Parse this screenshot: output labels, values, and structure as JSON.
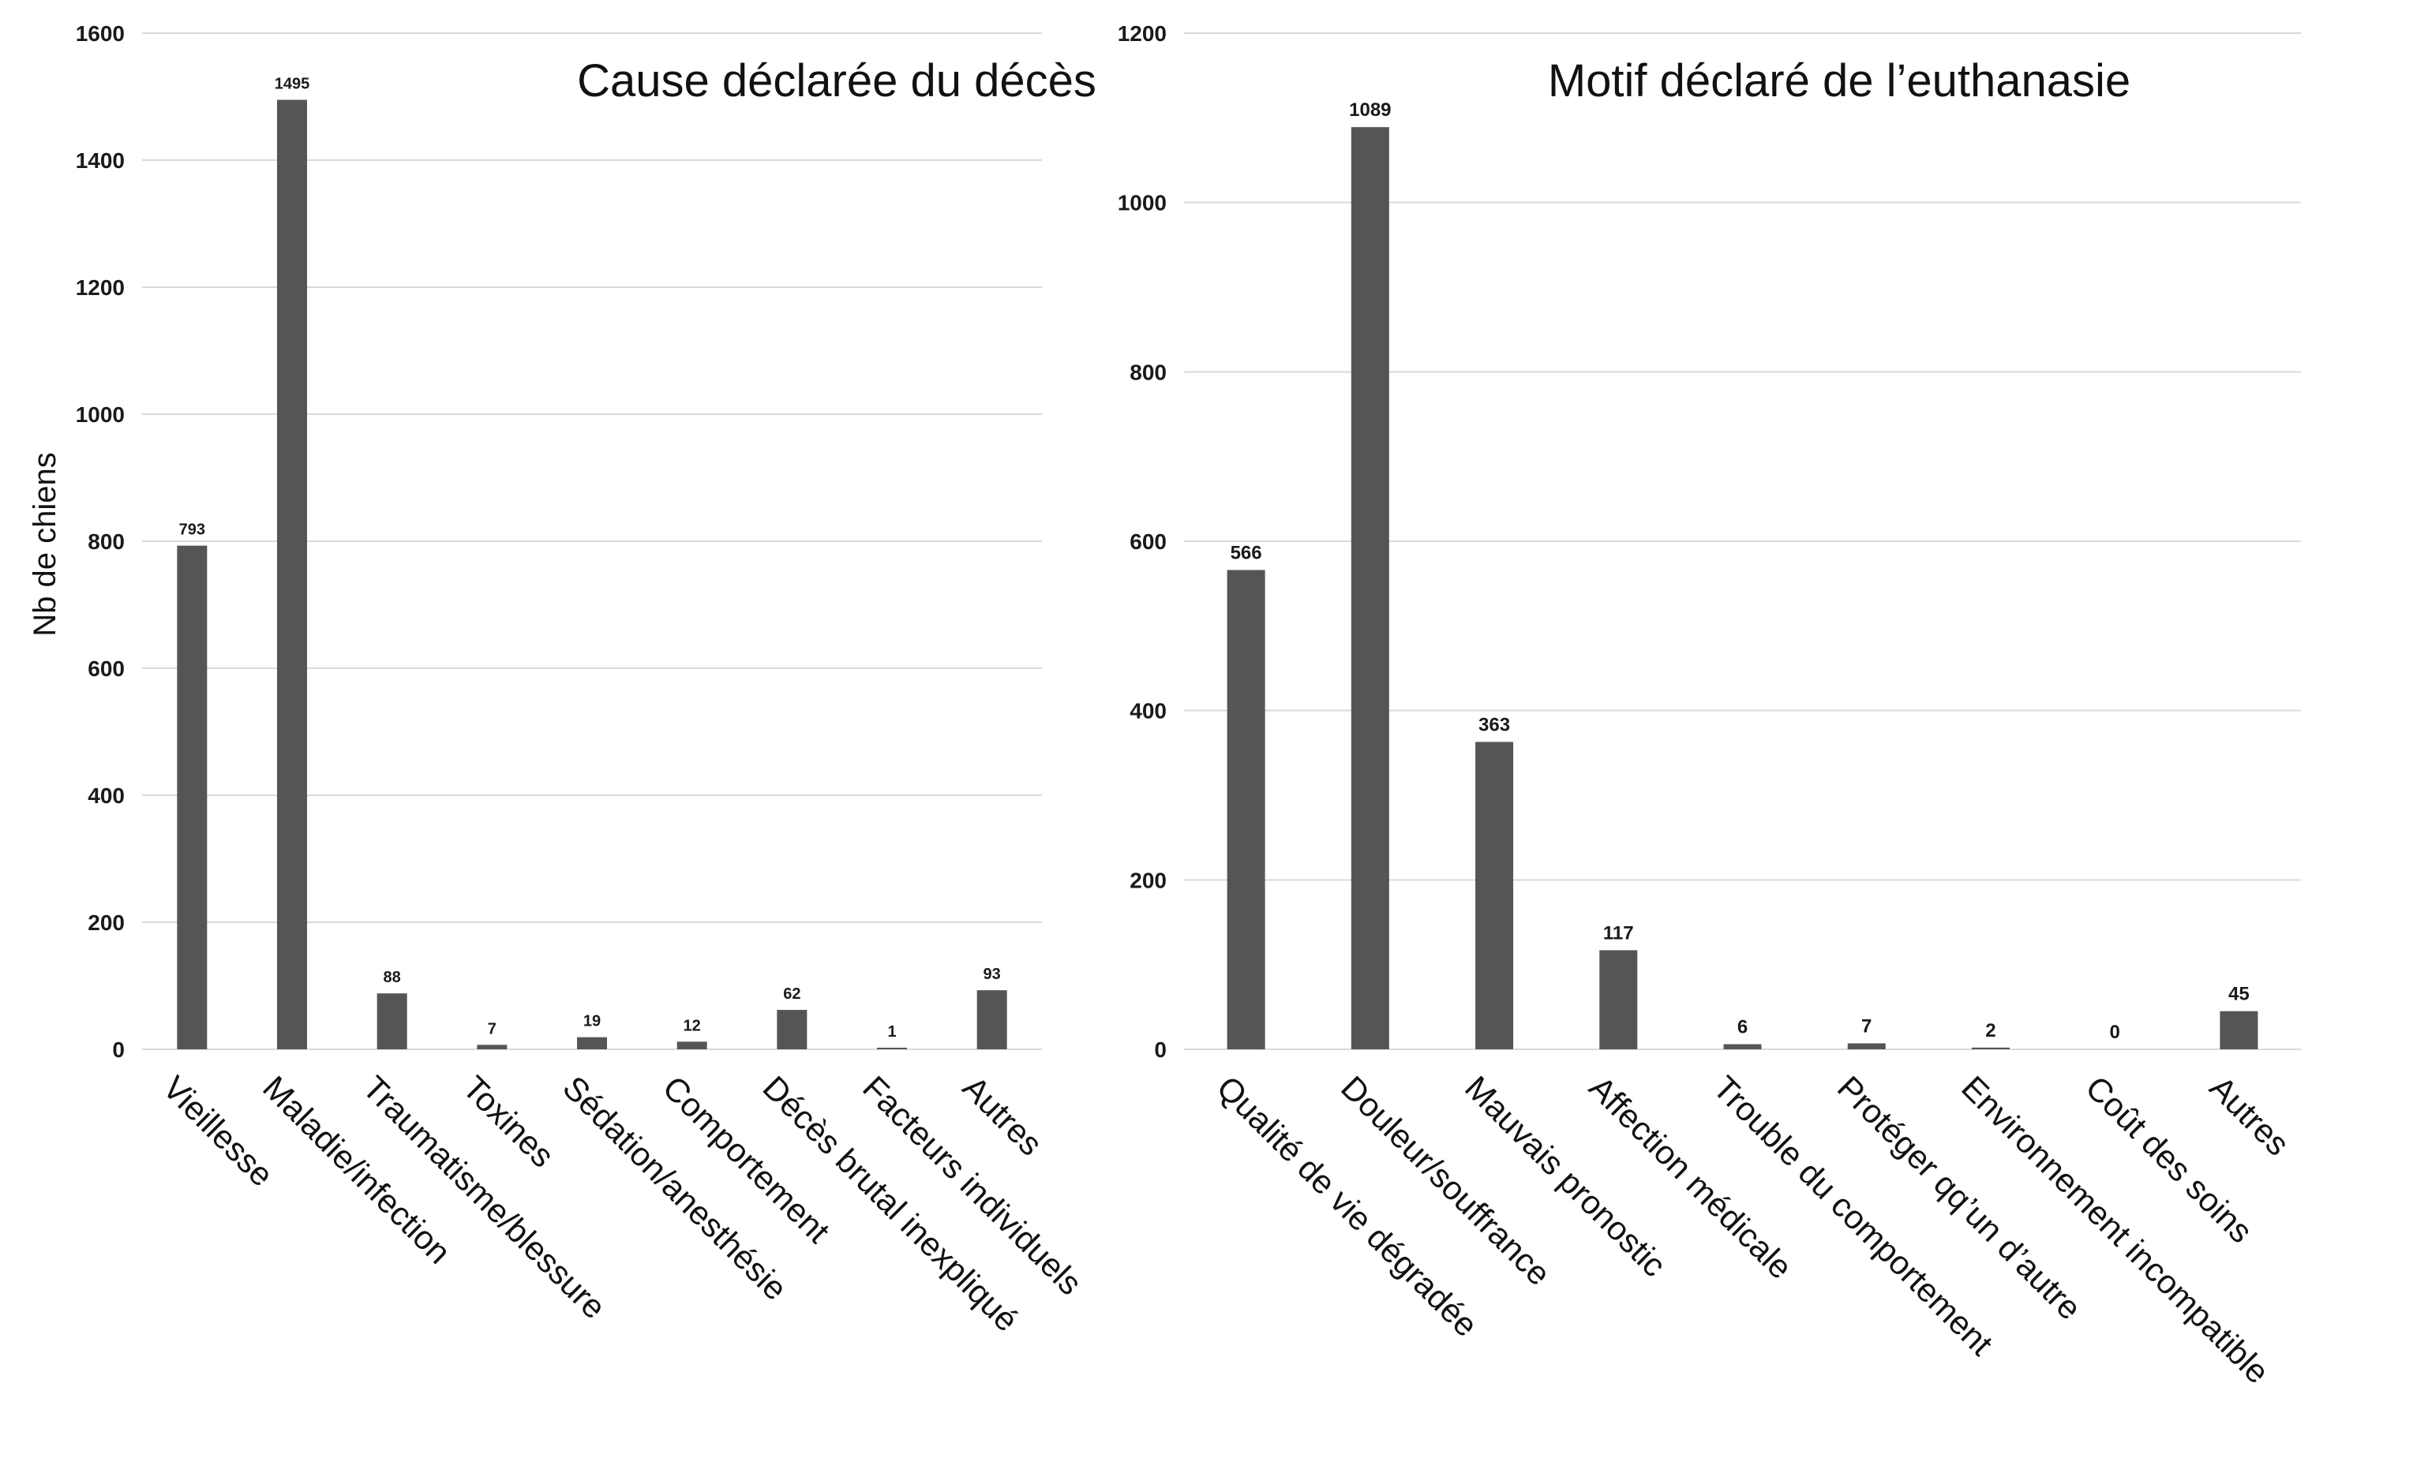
{
  "chart_data": [
    {
      "type": "bar",
      "title": "Cause déclarée du décès",
      "ylabel": "Nb de chiens",
      "xlabel": "",
      "ylim": [
        0,
        1600
      ],
      "yticks": [
        0,
        200,
        400,
        600,
        800,
        1000,
        1200,
        1400,
        1600
      ],
      "categories": [
        "Vieillesse",
        "Maladie/infection",
        "Traumatisme/blessure",
        "Toxines",
        "Sédation/anesthésie",
        "Comportement",
        "Décès brutal inexpliqué",
        "Facteurs individuels",
        "Autres"
      ],
      "values": [
        793,
        1495,
        88,
        7,
        19,
        12,
        62,
        1,
        93
      ],
      "grid": true,
      "legend": "none",
      "bar_color": "#555555"
    },
    {
      "type": "bar",
      "title": "Motif déclaré de l’euthanasie",
      "ylabel": "",
      "xlabel": "",
      "ylim": [
        0,
        1200
      ],
      "yticks": [
        0,
        200,
        400,
        600,
        800,
        1000,
        1200
      ],
      "categories": [
        "Qualité de vie dégradée",
        "Douleur/souffrance",
        "Mauvais pronostic",
        "Affection médicale",
        "Trouble du comportement",
        "Protéger qq’un d’autre",
        "Environnement incompatible",
        "Coût des soins",
        "Autres"
      ],
      "values": [
        566,
        1089,
        363,
        117,
        6,
        7,
        2,
        0,
        45
      ],
      "grid": true,
      "legend": "none",
      "bar_color": "#555555"
    }
  ]
}
